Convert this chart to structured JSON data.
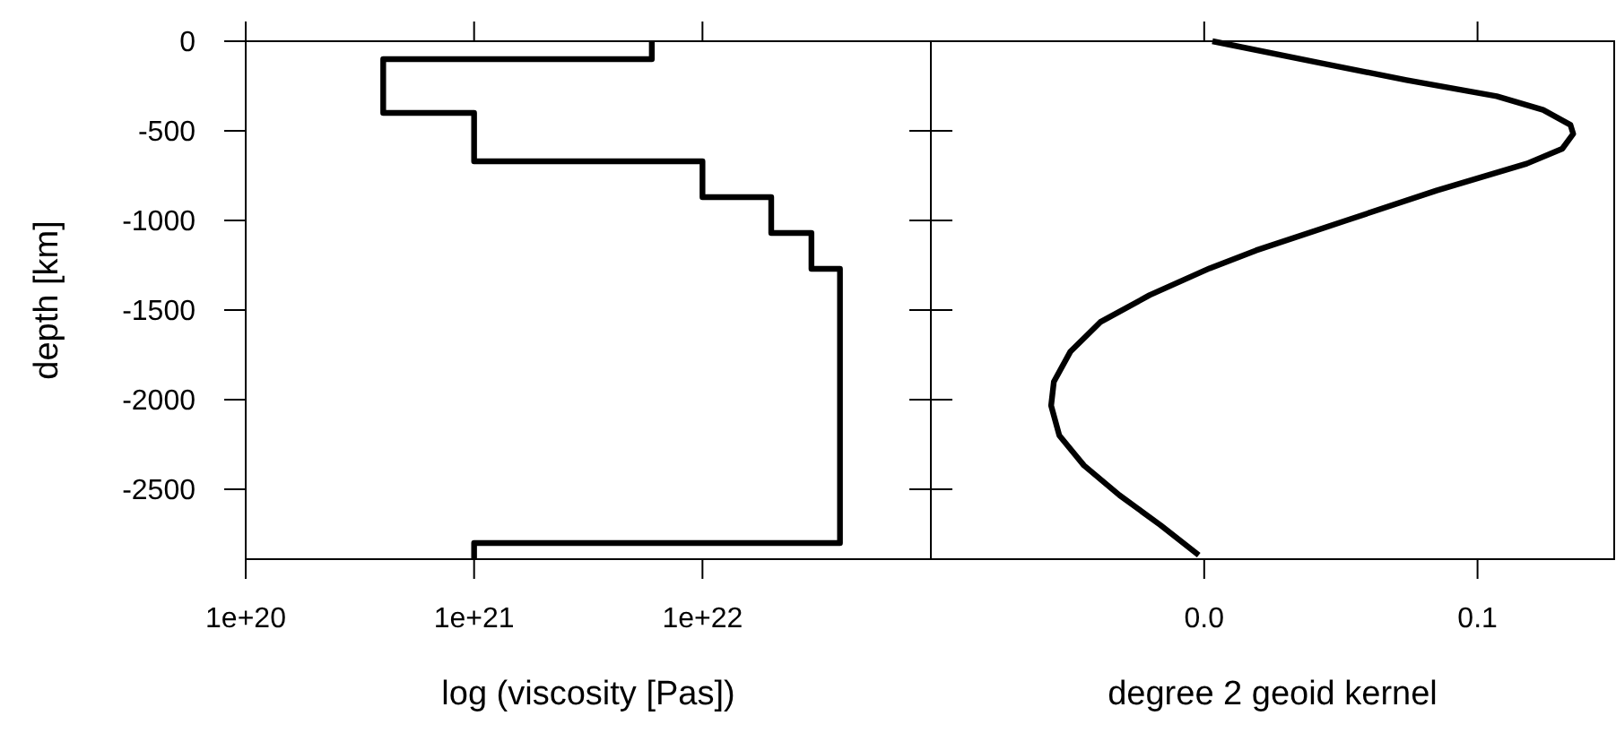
{
  "chart_data": [
    {
      "type": "line",
      "xlabel": "log (viscosity [Pas])",
      "ylabel": "depth [km]",
      "log": "x",
      "xlim": [
        1e+20,
        1e+23
      ],
      "ylim": [
        -2890,
        0
      ],
      "xticks": [
        {
          "value": 1e+20,
          "label": "1e+20"
        },
        {
          "value": 1e+21,
          "label": "1e+21"
        },
        {
          "value": 1e+22,
          "label": "1e+22"
        }
      ],
      "yticks": [
        0,
        -500,
        -1000,
        -1500,
        -2000,
        -2500
      ],
      "series": [
        {
          "color": "#000000",
          "x": [
            6e+21,
            6e+21,
            4e+20,
            4e+20,
            1e+21,
            1e+21,
            1e+22,
            1e+22,
            2e+22,
            2e+22,
            3e+22,
            3e+22,
            4e+22,
            4e+22,
            1e+21,
            1e+21
          ],
          "values": [
            0,
            -100,
            -100,
            -400,
            -400,
            -670,
            -670,
            -870,
            -870,
            -1070,
            -1070,
            -1270,
            -1270,
            -2800,
            -2800,
            -2890
          ]
        }
      ]
    },
    {
      "type": "line",
      "xlabel": "degree 2 geoid kernel",
      "xlim": [
        -0.1,
        0.15
      ],
      "ylim": [
        -2890,
        0
      ],
      "xticks": [
        {
          "value": 0,
          "label": "0.0"
        },
        0.1
      ],
      "yticks": [
        0,
        -500,
        -1000,
        -1500,
        -2000,
        -2500
      ],
      "tick_labels": "x",
      "series": [
        {
          "color": "#000000",
          "x": [
            0.003,
            0.041,
            0.074,
            0.107,
            0.124,
            0.134,
            0.135,
            0.131,
            0.118,
            0.085,
            0.052,
            0.019,
            0.002,
            -0.02,
            -0.038,
            -0.049,
            -0.055,
            -0.056,
            -0.053,
            -0.044,
            -0.031,
            -0.016,
            -0.002
          ],
          "values": [
            0,
            -117,
            -217,
            -307,
            -383,
            -467,
            -517,
            -600,
            -683,
            -833,
            -1000,
            -1167,
            -1267,
            -1417,
            -1567,
            -1733,
            -1900,
            -2033,
            -2200,
            -2367,
            -2533,
            -2700,
            -2867
          ]
        }
      ]
    }
  ]
}
